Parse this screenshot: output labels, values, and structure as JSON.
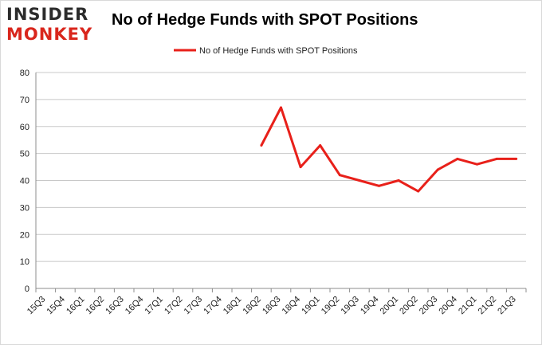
{
  "logo": {
    "line1": "INSIDER",
    "line2": "MONKEY"
  },
  "chart_data": {
    "type": "line",
    "title": "No of Hedge Funds with SPOT Positions",
    "xlabel": "",
    "ylabel": "",
    "ylim": [
      0,
      80
    ],
    "yticks": [
      0,
      10,
      20,
      30,
      40,
      50,
      60,
      70,
      80
    ],
    "grid": true,
    "legend_position": "top",
    "categories": [
      "15Q3",
      "15Q4",
      "16Q1",
      "16Q2",
      "16Q3",
      "16Q4",
      "17Q1",
      "17Q2",
      "17Q3",
      "17Q4",
      "18Q1",
      "18Q2",
      "18Q3",
      "18Q4",
      "19Q1",
      "19Q2",
      "19Q3",
      "19Q4",
      "20Q1",
      "20Q2",
      "20Q3",
      "20Q4",
      "21Q1",
      "21Q2",
      "21Q3"
    ],
    "series": [
      {
        "name": "No of Hedge Funds with SPOT Positions",
        "color": "#e8201a",
        "values": [
          null,
          null,
          null,
          null,
          null,
          null,
          null,
          null,
          null,
          null,
          null,
          53,
          67,
          45,
          53,
          42,
          40,
          38,
          40,
          36,
          44,
          48,
          46,
          48,
          48
        ]
      }
    ]
  }
}
